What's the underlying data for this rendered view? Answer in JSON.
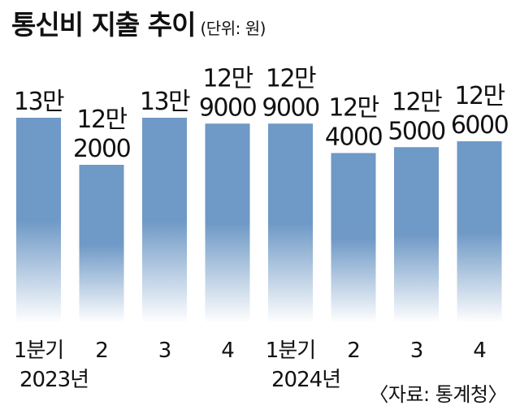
{
  "chart_data": {
    "type": "bar",
    "title": "통신비 지출 추이",
    "unit": "(단위: 원)",
    "categories": [
      "1분기",
      "2",
      "3",
      "4",
      "1분기",
      "2",
      "3",
      "4"
    ],
    "years": [
      "2023년",
      "2024년"
    ],
    "values": [
      130000,
      122000,
      130000,
      129000,
      129000,
      124000,
      125000,
      126000
    ],
    "value_labels": [
      [
        "13만"
      ],
      [
        "12만",
        "2000"
      ],
      [
        "13만"
      ],
      [
        "12만",
        "9000"
      ],
      [
        "12만",
        "9000"
      ],
      [
        "12만",
        "4000"
      ],
      [
        "12만",
        "5000"
      ],
      [
        "12만",
        "6000"
      ]
    ],
    "source": "〈자료: 통계청〉",
    "bar_color": "#6f99c6",
    "xlabel": "",
    "ylabel": ""
  }
}
